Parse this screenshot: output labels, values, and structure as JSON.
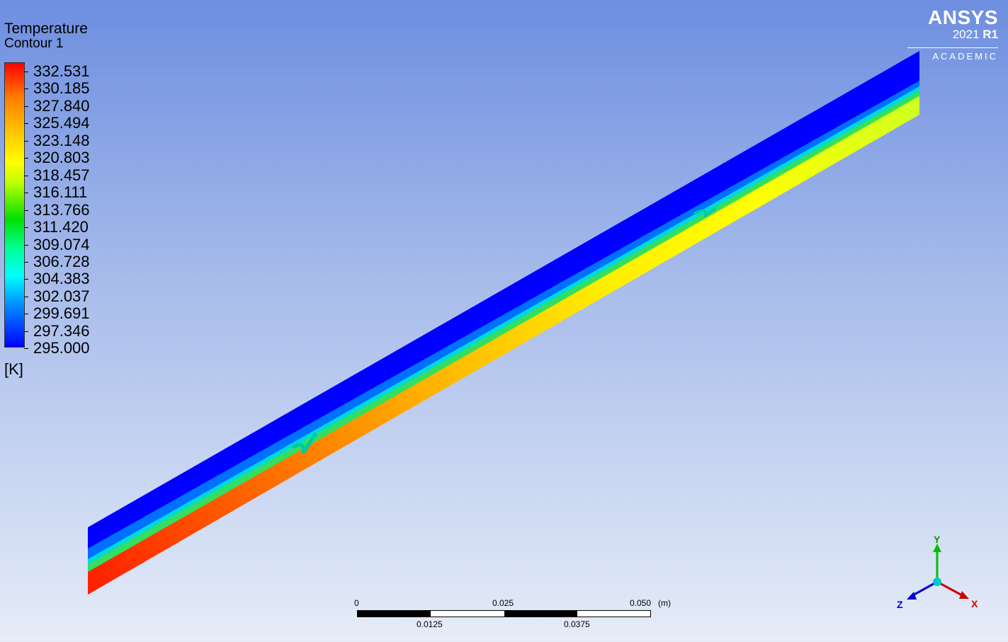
{
  "legend": {
    "title": "Temperature",
    "subtitle": "Contour 1",
    "unit": "[K]",
    "values": [
      "332.531",
      "330.185",
      "327.840",
      "325.494",
      "323.148",
      "320.803",
      "318.457",
      "316.111",
      "313.766",
      "311.420",
      "309.074",
      "306.728",
      "304.383",
      "302.037",
      "299.691",
      "297.346",
      "295.000"
    ]
  },
  "logo": {
    "brand": "ANSYS",
    "version": "2021",
    "release": "R1",
    "edition": "ACADEMIC"
  },
  "scale_bar": {
    "top_labels": [
      "0",
      "0.025",
      "0.050"
    ],
    "bottom_labels": [
      "0.0125",
      "0.0375"
    ],
    "unit": "(m)"
  },
  "axes": {
    "y": "Y",
    "z": "Z",
    "x": "X"
  },
  "colors": {
    "hot": "#ff0000",
    "cold": "#0000ff",
    "warm": "#ffff00",
    "accent_green": "#00c040"
  }
}
